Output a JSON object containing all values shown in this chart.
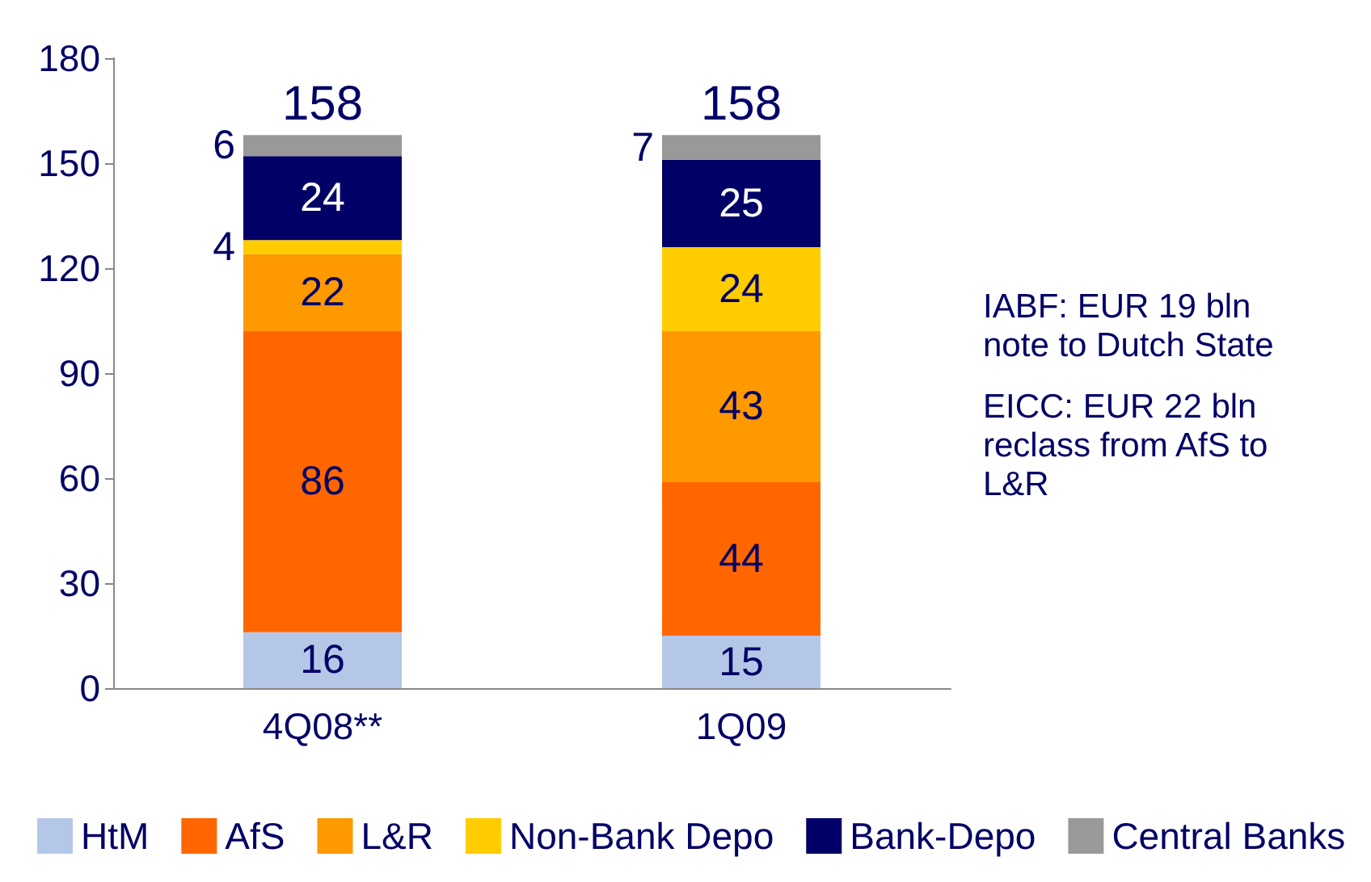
{
  "chart_data": {
    "type": "bar",
    "stacked": true,
    "categories": [
      "4Q08**",
      "1Q09"
    ],
    "series": [
      {
        "name": "HtM",
        "color": "#b4c7e7",
        "values": [
          16,
          15
        ]
      },
      {
        "name": "AfS",
        "color": "#ff6600",
        "values": [
          86,
          44
        ]
      },
      {
        "name": "L&R",
        "color": "#ff9900",
        "values": [
          22,
          43
        ]
      },
      {
        "name": "Non-Bank Depo",
        "color": "#ffcc00",
        "values": [
          4,
          24
        ]
      },
      {
        "name": "Bank-Depo",
        "color": "#000066",
        "values": [
          24,
          25
        ]
      },
      {
        "name": "Central Banks",
        "color": "#999999",
        "values": [
          6,
          7
        ]
      }
    ],
    "totals": [
      "158",
      "158"
    ],
    "ylim": [
      0,
      180
    ],
    "yticks": [
      0,
      30,
      60,
      90,
      120,
      150,
      180
    ],
    "data_labels": true,
    "grid": false,
    "legend": "bottom",
    "annotations": [
      "IABF: EUR 19 bln\nnote to Dutch State",
      "EICC: EUR 22 bln\nreclass from AfS to\nL&R"
    ]
  }
}
